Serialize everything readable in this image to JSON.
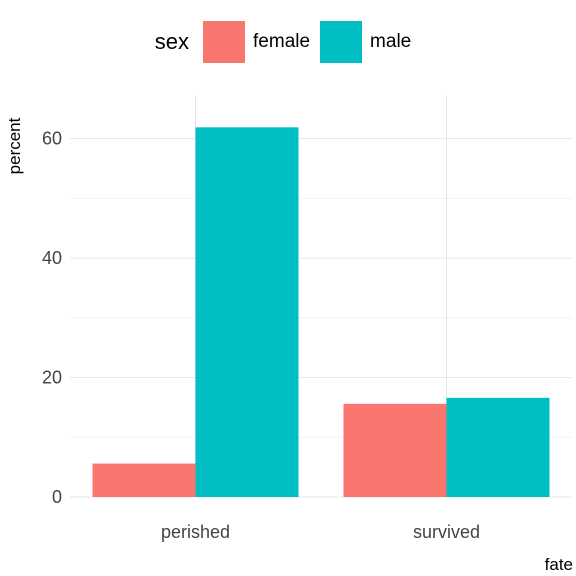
{
  "legend": {
    "title": "sex",
    "items": [
      {
        "label": "female",
        "color": "#F8766D"
      },
      {
        "label": "male",
        "color": "#00BFC4"
      }
    ]
  },
  "chart_data": {
    "type": "bar",
    "categories": [
      "perished",
      "survived"
    ],
    "series": [
      {
        "name": "female",
        "values": [
          5.6,
          15.6
        ],
        "color": "#F8766D"
      },
      {
        "name": "male",
        "values": [
          61.9,
          16.6
        ],
        "color": "#00BFC4"
      }
    ],
    "xlabel": "fate",
    "ylabel": "percent",
    "ylim": [
      0,
      65
    ],
    "yticks": [
      0,
      20,
      40,
      60
    ],
    "grid": true,
    "legend_position": "top"
  }
}
